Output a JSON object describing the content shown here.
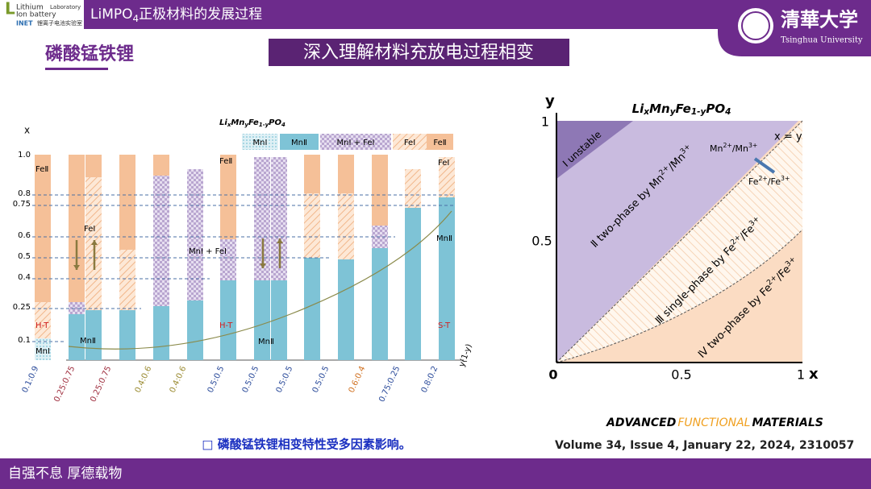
{
  "header": {
    "logo_lines": [
      "Lithium",
      "Laboratory",
      "Ion battery",
      "INET",
      "锂离子电池实验室"
    ],
    "title": [
      "LiMPO",
      "4",
      "正极材料的发展过程"
    ],
    "university": [
      "清華大学",
      "Tsinghua University"
    ]
  },
  "section_title": "磷酸锰铁锂",
  "banner": "深入理解材料充放电过程相变",
  "left_figure": {
    "formula": [
      "Li",
      "x",
      "Mn",
      "y",
      "Fe",
      "1-y",
      "PO",
      "4"
    ],
    "axis_y": "x",
    "axis_x": "y(1-y)",
    "yticks": [
      "1.0",
      "0.8",
      "0.75",
      "0.6",
      "0.5",
      "0.4",
      "0.25",
      "0.1"
    ],
    "legend": [
      "MnⅠ",
      "MnⅡ",
      "MnⅠ + FeⅠ",
      "FeⅠ",
      "FeⅡ"
    ],
    "categories": [
      "0.1:0.9",
      "0.25:0.75",
      "0.25:0.75",
      "0.4:0.6",
      "0.4:0.6",
      "0.5:0.5",
      "0.5:0.5",
      "0.5:0.5",
      "0.5:0.5",
      "0.6:0.4",
      "0.75:0.25",
      "0.8:0.2"
    ],
    "annotations": [
      "FeⅡ",
      "FeⅠ",
      "H-T",
      "MnⅠ",
      "MnⅡ",
      "FeⅡ",
      "MnⅠ + FeⅠ",
      "H-T",
      "MnⅡ",
      "FeⅠ",
      "MnⅡ",
      "S-T"
    ]
  },
  "right_figure": {
    "formula": [
      "Li",
      "x",
      "Mn",
      "y",
      "Fe",
      "1-y",
      "PO",
      "4"
    ],
    "axis_y": "y",
    "axis_x": "x",
    "yticks": [
      "1",
      "0.5"
    ],
    "xticks": [
      "0",
      "0.5",
      "1"
    ],
    "diagonal": "x = y",
    "mn_couple": [
      "Mn",
      "2+",
      "/Mn",
      "3+"
    ],
    "fe_couple": [
      "Fe",
      "2+",
      "/Fe",
      "3+"
    ],
    "region_1": "Ⅰ unstable",
    "region_2": [
      "Ⅱ two-phase by Mn",
      "2+",
      "/Mn",
      "3+"
    ],
    "region_3": [
      "Ⅲ single-phase by Fe",
      "2+",
      "/Fe",
      "3+"
    ],
    "region_4": [
      "Ⅳ two-phase by Fe",
      "2+",
      "/Fe",
      "3+"
    ]
  },
  "note": "□ 磷酸锰铁锂相变特性受多因素影响。",
  "journal": [
    "ADVANCED",
    "FUNCTIONAL",
    "MATERIALS"
  ],
  "citation": "Volume 34, Issue 4, January 22, 2024, 2310057",
  "footer": "自强不息 厚德载物"
}
